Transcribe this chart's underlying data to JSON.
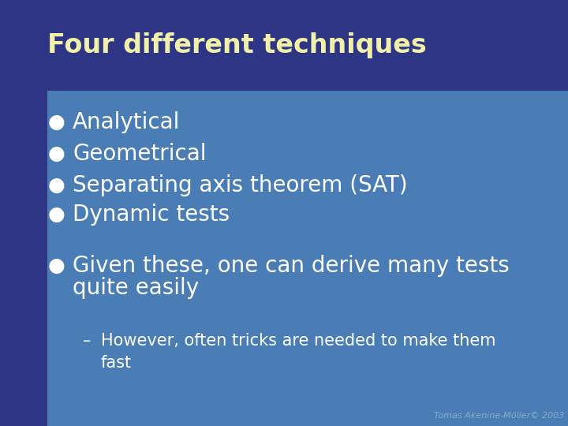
{
  "title": "Four different techniques",
  "title_color": "#f0f0a8",
  "title_fontsize": 24,
  "bg_dark": "#2e3585",
  "bg_light": "#4a7db5",
  "bg_strip_dark": "#2e3585",
  "bullet_color": "#ffffff",
  "bullet_fontsize": 20,
  "bullet_items": [
    "Analytical",
    "Geometrical",
    "Separating axis theorem (SAT)",
    "Dynamic tests"
  ],
  "extra_bullet_line1": "Given these, one can derive many tests",
  "extra_bullet_line2": "quite easily",
  "sub_bullet_line1": "However, often tricks are needed to make them",
  "sub_bullet_line2": "fast",
  "footer": "Tomas Akenine-Möller© 2003",
  "footer_color": "#8aacc8",
  "footer_fontsize": 8,
  "sub_bullet_fontsize": 15
}
